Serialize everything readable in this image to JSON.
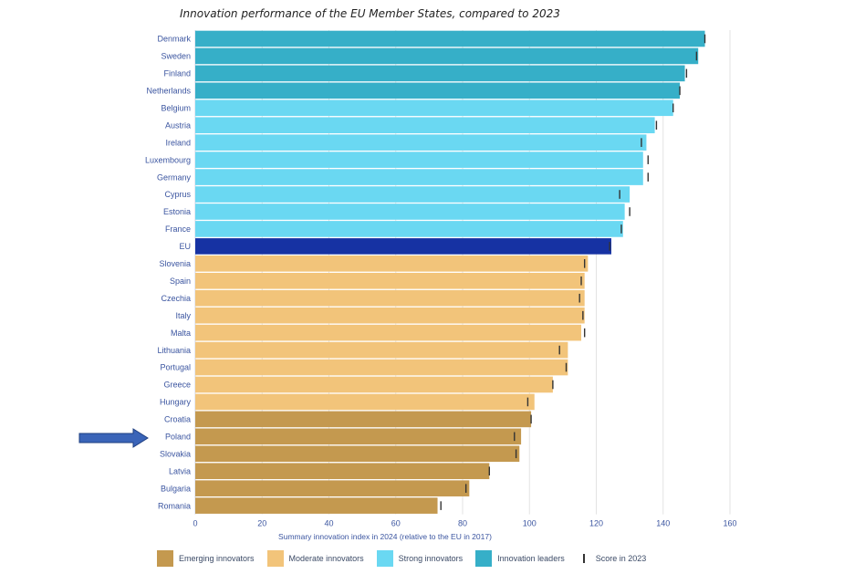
{
  "chart_data": {
    "type": "bar",
    "orientation": "horizontal",
    "title": "Innovation performance of the EU Member States, compared to 2023",
    "xlabel": "Summary innovation index in 2024 (relative to the EU in 2017)",
    "ylabel": "",
    "xlim": [
      0,
      160
    ],
    "xticks": [
      0,
      20,
      40,
      60,
      80,
      100,
      120,
      140,
      160
    ],
    "grid": true,
    "legend_position": "bottom",
    "categories": [
      "Denmark",
      "Sweden",
      "Finland",
      "Netherlands",
      "Belgium",
      "Austria",
      "Ireland",
      "Luxembourg",
      "Germany",
      "Cyprus",
      "Estonia",
      "France",
      "EU",
      "Slovenia",
      "Spain",
      "Czechia",
      "Italy",
      "Malta",
      "Lithuania",
      "Portugal",
      "Greece",
      "Hungary",
      "Croatia",
      "Poland",
      "Slovakia",
      "Latvia",
      "Bulgaria",
      "Romania"
    ],
    "values": [
      152.5,
      150.5,
      146.5,
      145.0,
      143.0,
      137.5,
      135.0,
      134.0,
      134.0,
      130.0,
      128.5,
      128.0,
      124.5,
      117.5,
      116.5,
      116.5,
      116.5,
      115.5,
      111.5,
      111.5,
      107.0,
      101.5,
      100.5,
      97.5,
      97.0,
      88.0,
      82.0,
      72.5
    ],
    "score_2023": [
      152.5,
      150.0,
      147.0,
      145.0,
      143.0,
      138.0,
      133.5,
      135.5,
      135.5,
      127.0,
      130.0,
      127.5,
      124.0,
      116.5,
      115.5,
      115.0,
      116.0,
      116.5,
      109.0,
      111.0,
      107.0,
      99.5,
      100.5,
      95.5,
      96.0,
      88.0,
      81.0,
      73.5
    ],
    "groups": [
      "leader",
      "leader",
      "leader",
      "leader",
      "strong",
      "strong",
      "strong",
      "strong",
      "strong",
      "strong",
      "strong",
      "strong",
      "eu",
      "moderate",
      "moderate",
      "moderate",
      "moderate",
      "moderate",
      "moderate",
      "moderate",
      "moderate",
      "moderate",
      "emerging",
      "emerging",
      "emerging",
      "emerging",
      "emerging",
      "emerging"
    ],
    "highlighted_category": "Poland"
  },
  "colors": {
    "leader": "#36afc8",
    "strong": "#6ad8f2",
    "eu": "#1632a3",
    "moderate": "#f2c47a",
    "emerging": "#c4994f",
    "label": "#3b55a0",
    "grid": "#e3e3e3",
    "score_mark": "#333333",
    "arrow": "#3a64b8"
  },
  "legend": [
    {
      "label": "Emerging innovators",
      "color": "#c4994f"
    },
    {
      "label": "Moderate innovators",
      "color": "#f2c47a"
    },
    {
      "label": "Strong innovators",
      "color": "#6ad8f2"
    },
    {
      "label": "Innovation leaders",
      "color": "#36afc8"
    }
  ],
  "legend_score_label": "Score in 2023",
  "arrow_icon": "right-arrow-icon"
}
